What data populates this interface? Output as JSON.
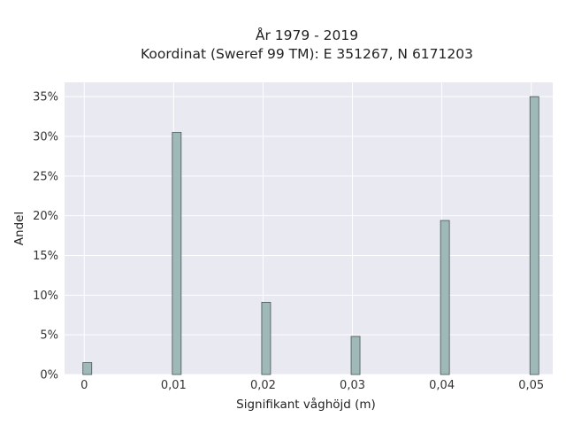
{
  "chart_data": {
    "type": "bar",
    "title_line1": "År 1979 - 2019",
    "title_line2": "Koordinat (Sweref 99 TM): E 351267, N 6171203",
    "xlabel": "Signifikant våghöjd (m)",
    "ylabel": "Andel",
    "categories": [
      "0",
      "0,01",
      "0,02",
      "0,03",
      "0,04",
      "0,05"
    ],
    "x": [
      0,
      0.01,
      0.02,
      0.03,
      0.04,
      0.05
    ],
    "values": [
      1.5,
      30.5,
      9.1,
      4.8,
      19.4,
      35.0
    ],
    "y_ticks": [
      "0%",
      "5%",
      "10%",
      "15%",
      "20%",
      "25%",
      "30%",
      "35%"
    ],
    "y_tick_values": [
      0,
      5,
      10,
      15,
      20,
      25,
      30,
      35
    ],
    "ylim": [
      0,
      36.8
    ],
    "xlim": [
      -0.0022,
      0.0524
    ],
    "grid": true,
    "colors": {
      "plot_bg": "#e8e9f1",
      "grid": "#ffffff",
      "bar_fill": "#9fb8b8",
      "bar_stroke": "#4a5555"
    }
  }
}
